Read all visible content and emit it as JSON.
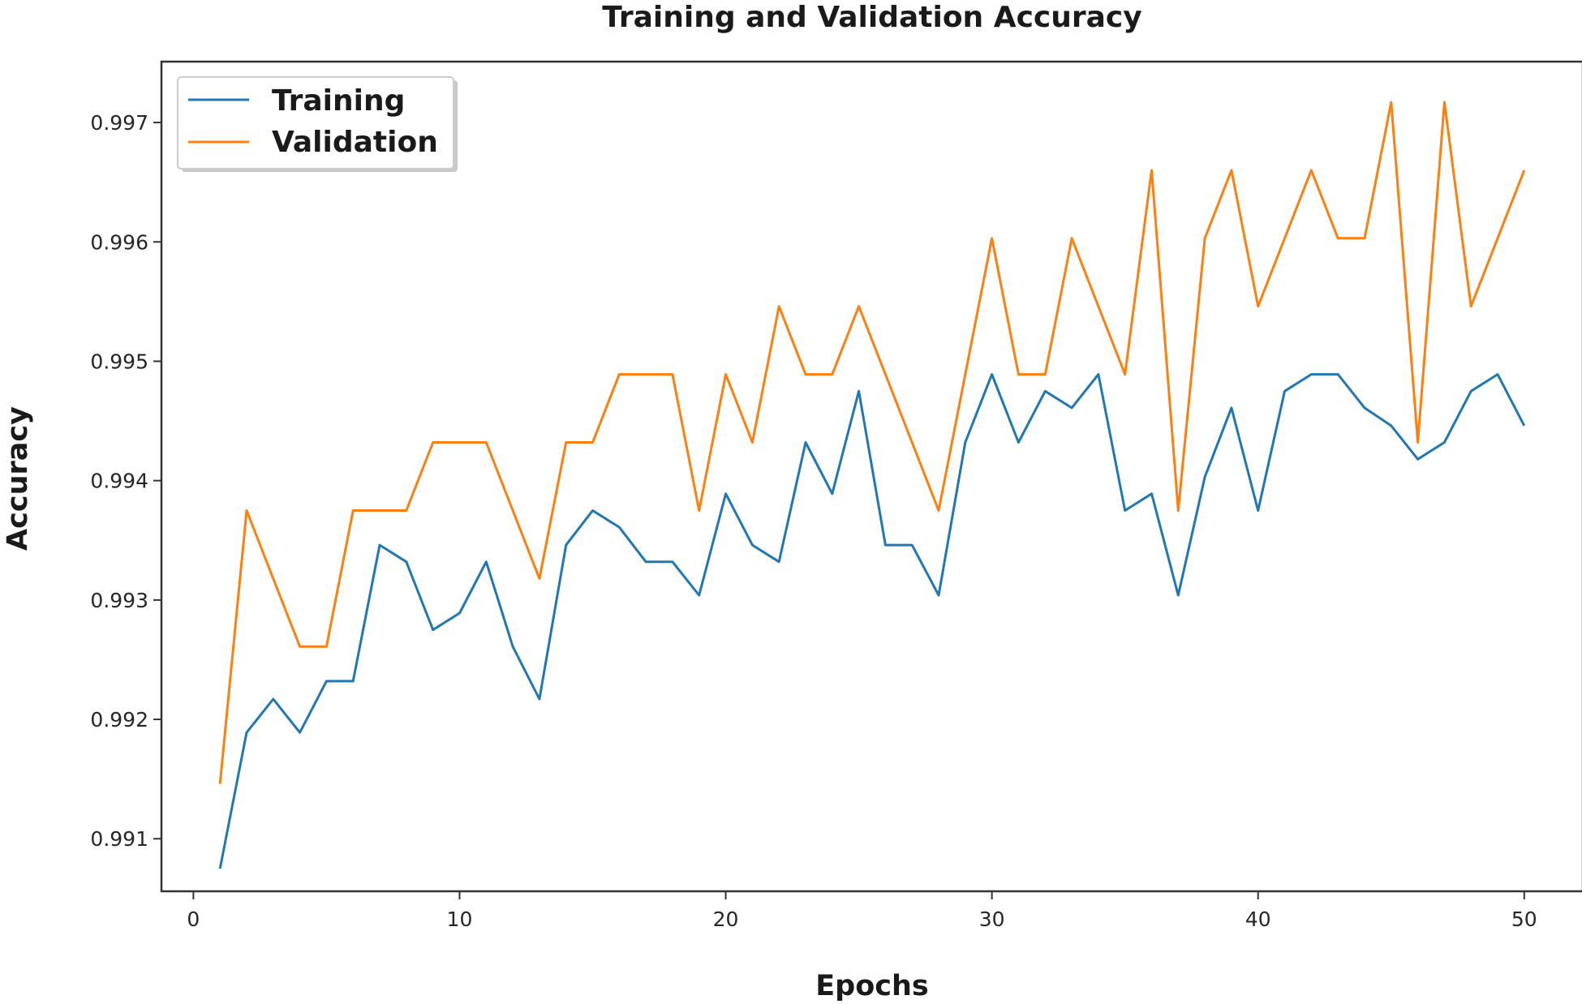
{
  "chart_data": {
    "type": "line",
    "title": "Training and Validation Accuracy",
    "xlabel": "Epochs",
    "ylabel": "Accuracy",
    "xlim": [
      -1.2,
      52.2
    ],
    "ylim": [
      0.99056,
      0.99751
    ],
    "xticks": [
      0,
      10,
      20,
      30,
      40,
      50
    ],
    "yticks": [
      0.991,
      0.992,
      0.993,
      0.994,
      0.995,
      0.996,
      0.997
    ],
    "ytick_labels": [
      "0.991",
      "0.992",
      "0.993",
      "0.994",
      "0.995",
      "0.996",
      "0.997"
    ],
    "grid": false,
    "legend_position": "top-left",
    "x": [
      1,
      2,
      3,
      4,
      5,
      6,
      7,
      8,
      9,
      10,
      11,
      12,
      13,
      14,
      15,
      16,
      17,
      18,
      19,
      20,
      21,
      22,
      23,
      24,
      25,
      26,
      27,
      28,
      29,
      30,
      31,
      32,
      33,
      34,
      35,
      36,
      37,
      38,
      39,
      40,
      41,
      42,
      43,
      44,
      45,
      46,
      47,
      48,
      49,
      50
    ],
    "series": [
      {
        "name": "Training",
        "color": "#1f77b4",
        "values": [
          0.99075,
          0.99189,
          0.99217,
          0.99189,
          0.99232,
          0.99232,
          0.99346,
          0.99332,
          0.99275,
          0.99289,
          0.99332,
          0.99261,
          0.99217,
          0.99346,
          0.99375,
          0.99361,
          0.99332,
          0.99332,
          0.99304,
          0.99389,
          0.99346,
          0.99332,
          0.99432,
          0.99389,
          0.99475,
          0.99346,
          0.99346,
          0.99304,
          0.99432,
          0.99489,
          0.99432,
          0.99475,
          0.99461,
          0.99489,
          0.99375,
          0.99389,
          0.99304,
          0.99403,
          0.99461,
          0.99375,
          0.99475,
          0.99489,
          0.99489,
          0.99461,
          0.99446,
          0.99418,
          0.99432,
          0.99475,
          0.99489,
          0.99446
        ]
      },
      {
        "name": "Validation",
        "color": "#ff7f0e",
        "values": [
          0.99146,
          0.99375,
          0.99318,
          0.99261,
          0.99261,
          0.99375,
          0.99375,
          0.99375,
          0.99432,
          0.99432,
          0.99432,
          0.99375,
          0.99318,
          0.99432,
          0.99432,
          0.99489,
          0.99489,
          0.99489,
          0.99375,
          0.99489,
          0.99432,
          0.99546,
          0.99489,
          0.99489,
          0.99546,
          0.99489,
          0.99432,
          0.99375,
          0.99489,
          0.99603,
          0.99489,
          0.99489,
          0.99603,
          0.99546,
          0.99489,
          0.9966,
          0.99375,
          0.99603,
          0.9966,
          0.99546,
          0.99603,
          0.9966,
          0.99603,
          0.99603,
          0.99717,
          0.99432,
          0.99717,
          0.99546,
          0.99603,
          0.9966
        ]
      }
    ]
  }
}
